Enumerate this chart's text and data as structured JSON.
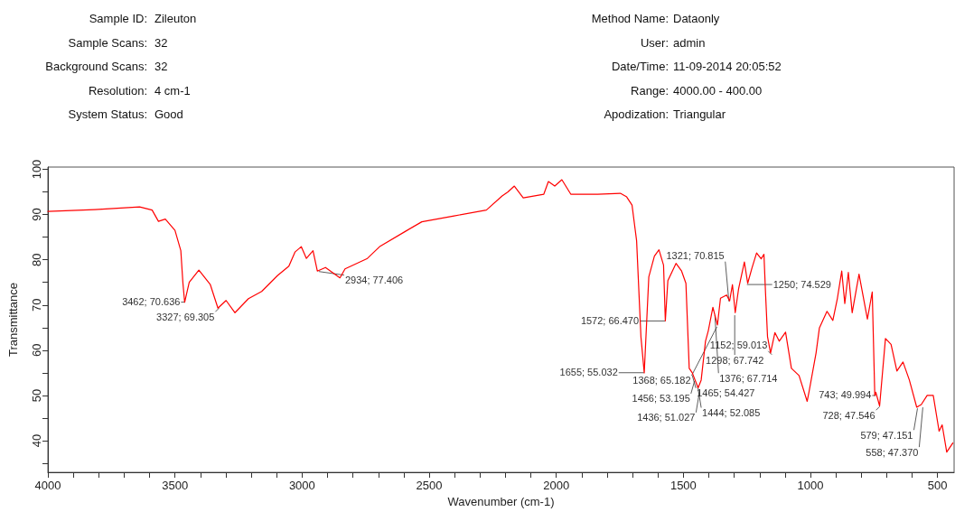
{
  "chart_data": {
    "type": "line",
    "xlabel": "Wavenumber (cm-1)",
    "ylabel": "Transmittance",
    "x": [
      4000,
      3816,
      3639,
      3590,
      3565,
      3538,
      3500,
      3477,
      3469,
      3462,
      3444,
      3406,
      3361,
      3331,
      3299,
      3264,
      3211,
      3159,
      3097,
      3052,
      3028,
      3003,
      2983,
      2957,
      2940,
      2908,
      2851,
      2831,
      2743,
      2693,
      2593,
      2529,
      2402,
      2275,
      2213,
      2190,
      2165,
      2130,
      2049,
      2031,
      2006,
      1978,
      1943,
      1837,
      1748,
      1723,
      1702,
      1684,
      1667,
      1654,
      1636,
      1614,
      1596,
      1578,
      1571,
      1561,
      1529,
      1507,
      1490,
      1477,
      1465,
      1442,
      1430,
      1413,
      1402,
      1384,
      1366,
      1354,
      1330,
      1318,
      1307,
      1296,
      1283,
      1260,
      1247,
      1230,
      1212,
      1194,
      1183,
      1177,
      1169,
      1157,
      1140,
      1123,
      1098,
      1075,
      1045,
      1013,
      1005,
      978,
      965,
      935,
      912,
      894,
      877,
      865,
      851,
      836,
      809,
      776,
      757,
      747,
      743,
      728,
      705,
      683,
      660,
      636,
      611,
      582,
      564,
      541,
      517,
      494,
      482,
      464,
      440
    ],
    "series": [
      {
        "color": "#ff0000",
        "values": [
          90.7,
          91.1,
          91.7,
          91,
          88.5,
          89,
          86.5,
          82,
          75,
          70.6,
          75,
          77.7,
          74.5,
          69.3,
          71,
          68.3,
          71.4,
          73,
          76.5,
          78.6,
          81.7,
          82.9,
          80.3,
          82,
          77.5,
          78.3,
          76,
          78,
          80.3,
          83,
          86.3,
          88.4,
          89.7,
          91,
          94.1,
          95,
          96.3,
          93.7,
          94.5,
          97.3,
          96.3,
          97.7,
          94.5,
          94.5,
          94.7,
          93.9,
          92.1,
          84.2,
          63,
          55,
          76.2,
          80.8,
          82.2,
          78.8,
          66.5,
          75.4,
          79.2,
          77.5,
          74.8,
          56,
          55,
          51.7,
          53.4,
          62,
          64.3,
          69.5,
          65.6,
          71.5,
          72.2,
          70.9,
          74.5,
          68.3,
          73.5,
          79.5,
          74.8,
          78.2,
          81.5,
          80.2,
          81.2,
          72.9,
          63,
          59.4,
          63.9,
          62,
          64,
          56,
          54.4,
          48.7,
          51,
          59.4,
          64.9,
          68.6,
          66.6,
          71.5,
          77.5,
          70.3,
          77.2,
          68.3,
          76.8,
          66.9,
          72.9,
          50,
          50.7,
          47.7,
          62.6,
          61.3,
          55.4,
          57.4,
          53.4,
          47.4,
          48,
          50,
          50,
          42.1,
          43.5,
          37.5,
          39.5
        ]
      }
    ],
    "xlim": [
      4000,
      435
    ],
    "xticks": [
      {
        "value": 4000,
        "label": "4000"
      },
      {
        "value": 3900,
        "label": null
      },
      {
        "value": 3800,
        "label": null
      },
      {
        "value": 3700,
        "label": null
      },
      {
        "value": 3600,
        "label": null
      },
      {
        "value": 3500,
        "label": "3500"
      },
      {
        "value": 3400,
        "label": null
      },
      {
        "value": 3300,
        "label": null
      },
      {
        "value": 3200,
        "label": null
      },
      {
        "value": 3100,
        "label": null
      },
      {
        "value": 3000,
        "label": "3000"
      },
      {
        "value": 2900,
        "label": null
      },
      {
        "value": 2800,
        "label": null
      },
      {
        "value": 2700,
        "label": null
      },
      {
        "value": 2600,
        "label": null
      },
      {
        "value": 2500,
        "label": "2500"
      },
      {
        "value": 2400,
        "label": null
      },
      {
        "value": 2300,
        "label": null
      },
      {
        "value": 2200,
        "label": null
      },
      {
        "value": 2100,
        "label": null
      },
      {
        "value": 2000,
        "label": "2000"
      },
      {
        "value": 1900,
        "label": null
      },
      {
        "value": 1800,
        "label": null
      },
      {
        "value": 1700,
        "label": null
      },
      {
        "value": 1600,
        "label": null
      },
      {
        "value": 1500,
        "label": "1500"
      },
      {
        "value": 1400,
        "label": null
      },
      {
        "value": 1300,
        "label": null
      },
      {
        "value": 1200,
        "label": null
      },
      {
        "value": 1100,
        "label": null
      },
      {
        "value": 1000,
        "label": "1000"
      },
      {
        "value": 900,
        "label": null
      },
      {
        "value": 800,
        "label": null
      },
      {
        "value": 700,
        "label": null
      },
      {
        "value": 600,
        "label": null
      },
      {
        "value": 500,
        "label": "500"
      }
    ],
    "ylim": [
      33,
      100.5
    ],
    "yticks": [
      {
        "value": 35,
        "label": null
      },
      40,
      {
        "value": 45,
        "label": null
      },
      50,
      {
        "value": 55,
        "label": null
      },
      60,
      {
        "value": 65,
        "label": null
      },
      70,
      {
        "value": 75,
        "label": null
      },
      80,
      {
        "value": 85,
        "label": null
      },
      90,
      {
        "value": 95,
        "label": null
      },
      100
    ],
    "grid": false,
    "marker": "none",
    "annotations": [
      "Sample ID:",
      "Zileuton",
      "Sample Scans:",
      "32",
      "Background Scans:",
      "32",
      "Resolution:",
      "4 cm-1",
      "System Status:",
      "Good",
      "Method Name:",
      "Dataonly",
      "User:",
      "admin",
      "Date/Time:",
      "11-09-2014  20:05:52",
      "Range:",
      "4000.00 - 400.00",
      "Apodization:",
      "Triangular",
      {
        "text": "3462; 70.636",
        "x": 3462,
        "y": 70.636
      },
      {
        "text": "3327; 69.305",
        "x": 3327,
        "y": 69.305
      },
      {
        "text": "2934; 77.406",
        "x": 2934,
        "y": 77.406
      },
      {
        "text": "1298; 67.742",
        "x": 1298,
        "y": 67.742
      },
      {
        "text": "1250; 74.529",
        "x": 1250,
        "y": 74.529
      },
      {
        "text": "1321; 70.815",
        "x": 1321,
        "y": 70.815
      },
      {
        "text": "1572; 66.470",
        "x": 1572,
        "y": 66.47
      },
      {
        "text": "1376; 67.714",
        "x": 1376,
        "y": 67.714
      },
      {
        "text": "1368; 65.182",
        "x": 1368,
        "y": 65.182
      },
      {
        "text": "1152; 59.013",
        "x": 1152,
        "y": 59.013
      },
      {
        "text": "1655; 55.032",
        "x": 1655,
        "y": 55.032
      },
      {
        "text": "1465; 54.427",
        "x": 1465,
        "y": 54.427
      },
      {
        "text": "1456; 53.195",
        "x": 1456,
        "y": 53.195
      },
      {
        "text": "1444; 52.085",
        "x": 1444,
        "y": 52.085
      },
      {
        "text": "1436; 51.027",
        "x": 1436,
        "y": 51.027
      },
      {
        "text": "743; 49.994",
        "x": 743,
        "y": 49.994
      },
      {
        "text": "728; 47.546",
        "x": 728,
        "y": 47.546
      },
      {
        "text": "579; 47.151",
        "x": 579,
        "y": 47.151
      },
      {
        "text": "558; 47.370",
        "x": 558,
        "y": 47.37
      }
    ]
  }
}
